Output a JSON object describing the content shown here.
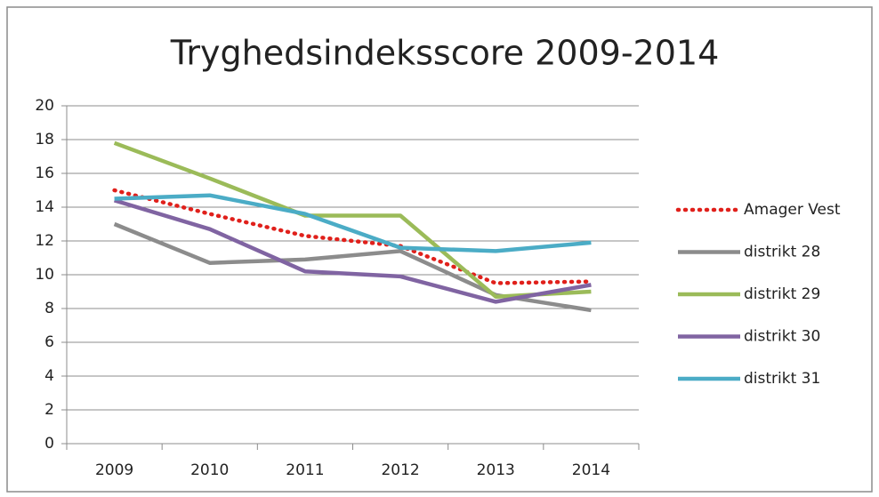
{
  "chart_data": {
    "type": "line",
    "title": "Tryghedsindeksscore 2009-2014",
    "categories": [
      "2009",
      "2010",
      "2011",
      "2012",
      "2013",
      "2014"
    ],
    "series": [
      {
        "name": "Amager Vest",
        "color": "#e0201b",
        "dashed": true,
        "values": [
          15.0,
          13.6,
          12.3,
          11.7,
          9.5,
          9.6
        ]
      },
      {
        "name": "distrikt 28",
        "color": "#8c8c8c",
        "values": [
          13.0,
          10.7,
          10.9,
          11.4,
          8.8,
          7.9
        ]
      },
      {
        "name": "distrikt 29",
        "color": "#9bbb59",
        "values": [
          17.8,
          15.7,
          13.5,
          13.5,
          8.7,
          9.0
        ]
      },
      {
        "name": "distrikt 30",
        "color": "#8064a2",
        "values": [
          14.4,
          12.7,
          10.2,
          9.9,
          8.4,
          9.4
        ]
      },
      {
        "name": "distrikt 31",
        "color": "#4bacc6",
        "values": [
          14.5,
          14.7,
          13.6,
          11.6,
          11.4,
          11.9
        ]
      }
    ],
    "ylim": [
      0,
      20
    ],
    "yticks": [
      0,
      2,
      4,
      6,
      8,
      10,
      12,
      14,
      16,
      18,
      20
    ],
    "grid": true,
    "legend": "right"
  }
}
